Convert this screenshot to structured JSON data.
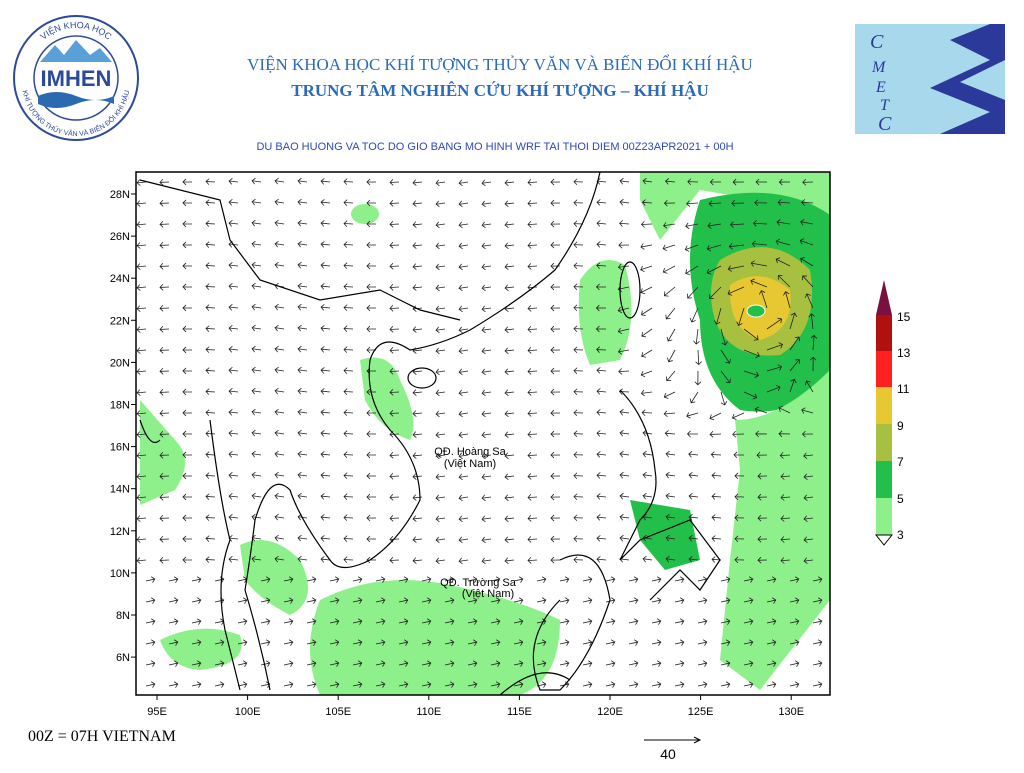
{
  "logo_left": {
    "name": "IMHEN",
    "ring_top": "VIỆN KHOA HỌC",
    "ring_bottom": "KHÍ TƯỢNG THỦY VĂN VÀ BIẾN ĐỔI KHÍ HẬU"
  },
  "logo_right": {
    "letters": [
      "C",
      "M",
      "E",
      "T",
      "C"
    ]
  },
  "header": {
    "line1": "VIỆN KHOA HỌC KHÍ TƯỢNG THỦY VĂN VÀ BIẾN ĐỔI KHÍ HẬU",
    "line2": "TRUNG TÂM NGHIÊN CỨU KHÍ TƯỢNG – KHÍ HẬU"
  },
  "map": {
    "title": "DU BAO HUONG VA TOC DO GIO BANG MO HINH WRF TAI THOI DIEM  00Z23APR2021 + 00H",
    "lat_labels": [
      "28N",
      "26N",
      "24N",
      "22N",
      "20N",
      "18N",
      "16N",
      "14N",
      "12N",
      "10N",
      "8N",
      "6N"
    ],
    "lon_labels": [
      "95E",
      "100E",
      "105E",
      "110E",
      "115E",
      "120E",
      "125E",
      "130E"
    ],
    "annotations": [
      {
        "line1": "QĐ. Hoàng Sa",
        "line2": "(Việt Nam)"
      },
      {
        "line1": "QĐ. Trường Sa",
        "line2": "(Việt Nam)"
      }
    ]
  },
  "legend": {
    "levels": [
      "15",
      "13",
      "11",
      "9",
      "7",
      "5",
      "3"
    ]
  },
  "footer": {
    "note": "00Z = 07H VIETNAM",
    "ref_vector": "40"
  }
}
